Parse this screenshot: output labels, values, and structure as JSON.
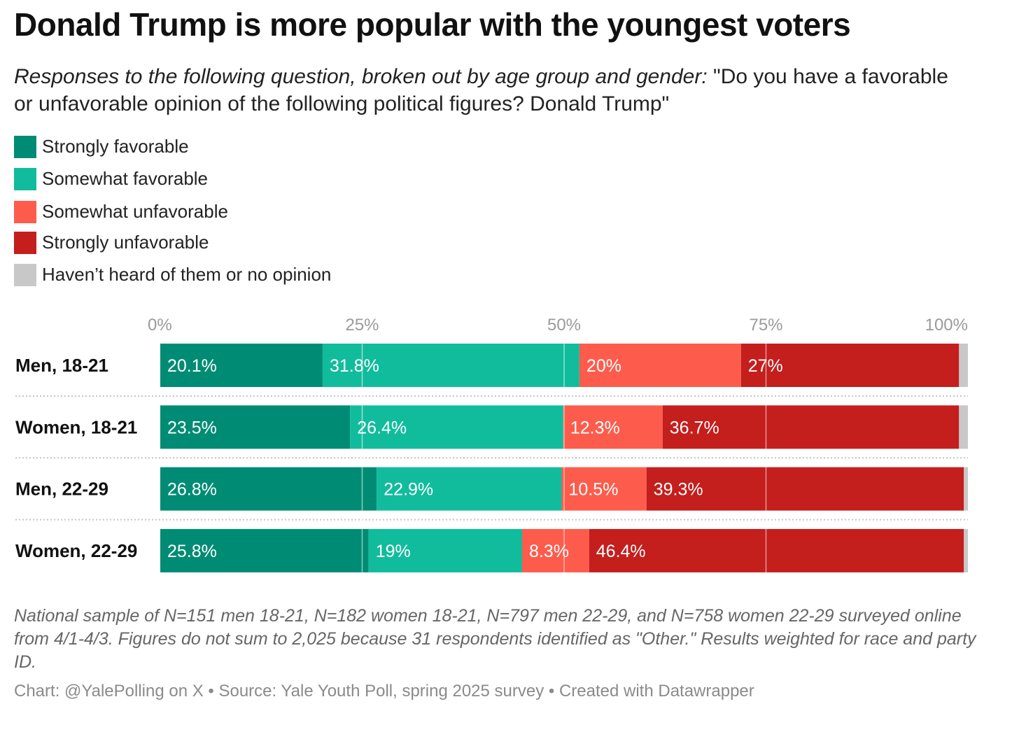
{
  "title": "Donald Trump is more popular with the youngest voters",
  "subtitle_lead": "Responses to the following question, broken out by age group and gender:",
  "subtitle_rest": " \"Do you have a favorable or unfavorable opinion of the following political figures? Donald Trump\"",
  "notes": "National sample of N=151 men 18-21, N=182 women 18-21, N=797 men 22-29, and N=758 women 22-29 surveyed online from 4/1-4/3. Figures do not sum to 2,025 because 31 respondents identified as \"Other.\" Results weighted for race and party ID.",
  "source": "Chart: @YalePolling on X • Source: Yale Youth Poll, spring 2025 survey • Created with Datawrapper",
  "chart_data": {
    "type": "bar",
    "orientation": "horizontal",
    "stacked": true,
    "x_ticks": [
      "0%",
      "25%",
      "50%",
      "75%",
      "100%"
    ],
    "xlim": [
      0,
      100
    ],
    "categories": [
      "Men, 18-21",
      "Women, 18-21",
      "Men, 22-29",
      "Women, 22-29"
    ],
    "series": [
      {
        "name": "Strongly favorable",
        "color": "#008c74",
        "values": [
          20.1,
          23.5,
          26.8,
          25.8
        ]
      },
      {
        "name": "Somewhat favorable",
        "color": "#11bc9d",
        "values": [
          31.8,
          26.4,
          22.9,
          19
        ]
      },
      {
        "name": "Somewhat unfavorable",
        "color": "#fd5c4c",
        "values": [
          20,
          12.3,
          10.5,
          8.3
        ]
      },
      {
        "name": "Strongly unfavorable",
        "color": "#c41e1d",
        "values": [
          27,
          36.7,
          39.3,
          46.4
        ]
      },
      {
        "name": "Haven’t heard of them or no opinion",
        "color": "#c8c8c8",
        "values": [
          1.1,
          1.1,
          0.5,
          0.5
        ]
      }
    ],
    "data_labels": [
      [
        "20.1%",
        "31.8%",
        "20%",
        "27%",
        ""
      ],
      [
        "23.5%",
        "26.4%",
        "12.3%",
        "36.7%",
        ""
      ],
      [
        "26.8%",
        "22.9%",
        "10.5%",
        "39.3%",
        ""
      ],
      [
        "25.8%",
        "19%",
        "8.3%",
        "46.4%",
        ""
      ]
    ],
    "legend_position": "top-left",
    "grid": true
  }
}
